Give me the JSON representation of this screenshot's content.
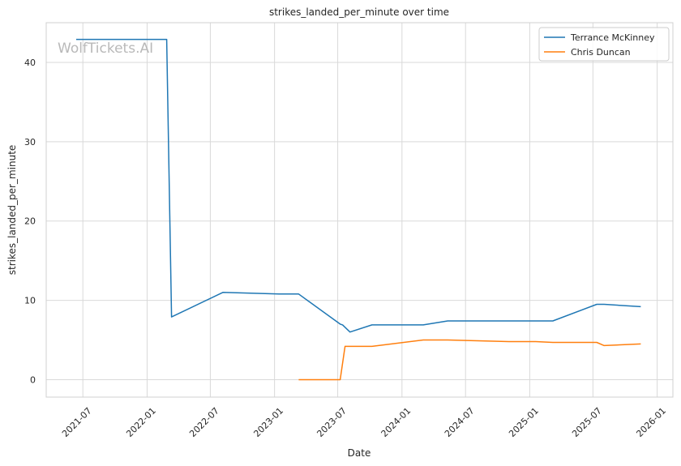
{
  "chart_data": {
    "type": "line",
    "title": "strikes_landed_per_minute over time",
    "xlabel": "Date",
    "ylabel": "strikes_landed_per_minute",
    "watermark": "WolfTickets.AI",
    "xlim": [
      "2021-03-18",
      "2026-02-15"
    ],
    "ylim": [
      -2.2,
      45
    ],
    "yticks": [
      0,
      10,
      20,
      30,
      40
    ],
    "xticks": [
      "2021-07",
      "2022-01",
      "2022-07",
      "2023-01",
      "2023-07",
      "2024-01",
      "2024-07",
      "2025-01",
      "2025-07",
      "2026-01"
    ],
    "grid": true,
    "legend_position": "top-right",
    "series": [
      {
        "name": "Terrance McKinney",
        "color": "#1f77b4",
        "points": [
          [
            "2021-06-12",
            42.9
          ],
          [
            "2022-02-26",
            42.9
          ],
          [
            "2022-03-12",
            7.9
          ],
          [
            "2022-08-06",
            11.0
          ],
          [
            "2023-01-14",
            10.8
          ],
          [
            "2023-03-11",
            10.8
          ],
          [
            "2023-07-08",
            7.0
          ],
          [
            "2023-07-15",
            6.9
          ],
          [
            "2023-08-05",
            6.0
          ],
          [
            "2023-10-07",
            6.9
          ],
          [
            "2024-03-02",
            6.9
          ],
          [
            "2024-05-11",
            7.4
          ],
          [
            "2024-11-02",
            7.4
          ],
          [
            "2025-03-08",
            7.4
          ],
          [
            "2025-07-12",
            9.5
          ],
          [
            "2025-08-02",
            9.5
          ],
          [
            "2025-11-15",
            9.2
          ]
        ]
      },
      {
        "name": "Chris Duncan",
        "color": "#ff7f0e",
        "points": [
          [
            "2023-03-11",
            0.0
          ],
          [
            "2023-07-08",
            0.0
          ],
          [
            "2023-07-22",
            4.2
          ],
          [
            "2023-10-07",
            4.2
          ],
          [
            "2024-03-02",
            5.0
          ],
          [
            "2024-05-11",
            5.0
          ],
          [
            "2024-11-02",
            4.8
          ],
          [
            "2025-01-18",
            4.8
          ],
          [
            "2025-03-08",
            4.7
          ],
          [
            "2025-07-12",
            4.7
          ],
          [
            "2025-08-02",
            4.3
          ],
          [
            "2025-11-15",
            4.5
          ]
        ]
      }
    ]
  }
}
